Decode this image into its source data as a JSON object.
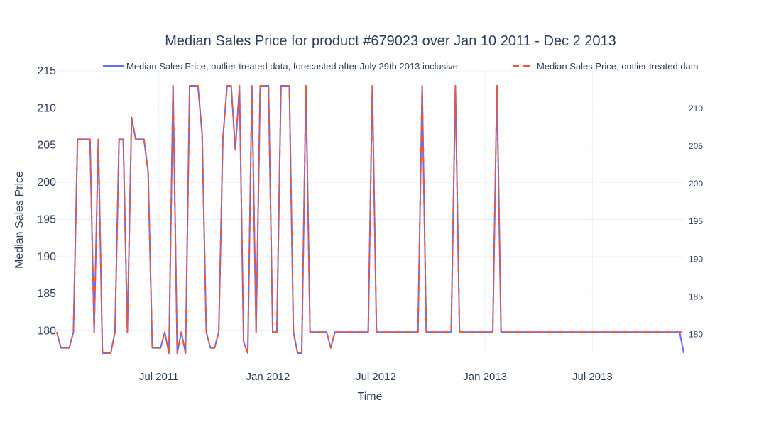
{
  "chart_data": {
    "type": "line",
    "title": "Median Sales Price for product #679023 over Jan 10 2011 - Dec 2 2013",
    "xlabel": "Time",
    "ylabel": "Median Sales Price",
    "xlim": [
      "2011-01-10",
      "2013-12-02"
    ],
    "ylim": [
      177.5,
      213
    ],
    "y_left_range_shown": [
      177,
      215
    ],
    "x_tick_labels": [
      {
        "date": "2011-07-01",
        "label": "Jul 2011"
      },
      {
        "date": "2012-01-01",
        "label": "Jan 2012"
      },
      {
        "date": "2012-07-01",
        "label": "Jul 2012"
      },
      {
        "date": "2013-01-01",
        "label": "Jan 2013"
      },
      {
        "date": "2013-07-01",
        "label": "Jul 2013"
      }
    ],
    "y_left_ticks": [
      "180",
      "185",
      "190",
      "195",
      "200",
      "205",
      "210",
      "215"
    ],
    "y_right_ticks": [
      "180",
      "185",
      "190",
      "195",
      "200",
      "205",
      "210"
    ],
    "grid": true,
    "legend_position": "top",
    "dates": [
      "2011-01-10",
      "2011-01-17",
      "2011-01-24",
      "2011-01-31",
      "2011-02-07",
      "2011-02-14",
      "2011-02-21",
      "2011-02-28",
      "2011-03-07",
      "2011-03-14",
      "2011-03-21",
      "2011-03-28",
      "2011-04-04",
      "2011-04-11",
      "2011-04-18",
      "2011-04-25",
      "2011-05-02",
      "2011-05-09",
      "2011-05-16",
      "2011-05-23",
      "2011-05-30",
      "2011-06-06",
      "2011-06-13",
      "2011-06-20",
      "2011-06-27",
      "2011-07-04",
      "2011-07-11",
      "2011-07-18",
      "2011-07-25",
      "2011-08-01",
      "2011-08-08",
      "2011-08-15",
      "2011-08-22",
      "2011-08-29",
      "2011-09-05",
      "2011-09-12",
      "2011-09-19",
      "2011-09-26",
      "2011-10-03",
      "2011-10-10",
      "2011-10-17",
      "2011-10-24",
      "2011-10-31",
      "2011-11-07",
      "2011-11-14",
      "2011-11-21",
      "2011-11-28",
      "2011-12-05",
      "2011-12-12",
      "2011-12-19",
      "2011-12-26",
      "2012-01-02",
      "2012-01-09",
      "2012-01-16",
      "2012-01-23",
      "2012-01-30",
      "2012-02-06",
      "2012-02-13",
      "2012-02-20",
      "2012-02-27",
      "2012-03-05",
      "2012-03-12",
      "2012-03-19",
      "2012-03-26",
      "2012-04-02",
      "2012-04-09",
      "2012-04-16",
      "2012-04-23",
      "2012-04-30",
      "2012-05-07",
      "2012-05-14",
      "2012-05-21",
      "2012-05-28",
      "2012-06-04",
      "2012-06-11",
      "2012-06-18",
      "2012-06-25",
      "2012-07-02",
      "2012-07-09",
      "2012-07-16",
      "2012-07-23",
      "2012-07-30",
      "2012-08-06",
      "2012-08-13",
      "2012-08-20",
      "2012-08-27",
      "2012-09-03",
      "2012-09-10",
      "2012-09-17",
      "2012-09-24",
      "2012-10-01",
      "2012-10-08",
      "2012-10-15",
      "2012-10-22",
      "2012-10-29",
      "2012-11-05",
      "2012-11-12",
      "2012-11-19",
      "2012-11-26",
      "2012-12-03",
      "2012-12-10",
      "2012-12-17",
      "2012-12-24",
      "2012-12-31",
      "2013-01-07",
      "2013-01-14",
      "2013-01-21",
      "2013-01-28",
      "2013-02-04",
      "2013-02-11",
      "2013-02-18",
      "2013-02-25",
      "2013-03-04",
      "2013-03-11",
      "2013-03-18",
      "2013-03-25",
      "2013-04-01",
      "2013-04-08",
      "2013-04-15",
      "2013-04-22",
      "2013-04-29",
      "2013-05-06",
      "2013-05-13",
      "2013-05-20",
      "2013-05-27",
      "2013-06-03",
      "2013-06-10",
      "2013-06-17",
      "2013-06-24",
      "2013-07-01",
      "2013-07-08",
      "2013-07-15",
      "2013-07-22",
      "2013-07-29",
      "2013-08-05",
      "2013-08-12",
      "2013-08-19",
      "2013-08-26",
      "2013-09-02",
      "2013-09-09",
      "2013-09-16",
      "2013-09-23",
      "2013-09-30",
      "2013-10-07",
      "2013-10-14",
      "2013-10-21",
      "2013-10-28",
      "2013-11-04",
      "2013-11-11",
      "2013-11-18",
      "2013-11-25",
      "2013-12-02"
    ],
    "series": [
      {
        "name": "Median Sales Price, outlier treated data, forecasted after July 29th 2013 inclusive",
        "color": "#636efa",
        "dash": "solid",
        "values": [
          180.3,
          178.2,
          178.2,
          178.2,
          180.3,
          205.9,
          205.9,
          205.9,
          205.9,
          180.3,
          205.9,
          177.5,
          177.5,
          177.5,
          180.3,
          205.9,
          205.9,
          180.3,
          208.8,
          205.9,
          205.9,
          205.9,
          201.6,
          178.2,
          178.2,
          178.2,
          180.3,
          177.5,
          213.0,
          177.5,
          180.3,
          177.5,
          213.0,
          213.0,
          213.0,
          206.6,
          180.3,
          178.2,
          178.2,
          180.3,
          205.9,
          213.0,
          213.0,
          204.5,
          213.0,
          179.0,
          177.5,
          213.0,
          180.3,
          213.0,
          213.0,
          213.0,
          180.3,
          180.3,
          213.0,
          213.0,
          213.0,
          180.3,
          177.5,
          177.5,
          213.0,
          180.3,
          180.3,
          180.3,
          180.3,
          180.3,
          178.2,
          180.3,
          180.3,
          180.3,
          180.3,
          180.3,
          180.3,
          180.3,
          180.3,
          180.3,
          213.0,
          180.3,
          180.3,
          180.3,
          180.3,
          180.3,
          180.3,
          180.3,
          180.3,
          180.3,
          180.3,
          180.3,
          213.0,
          180.3,
          180.3,
          180.3,
          180.3,
          180.3,
          180.3,
          180.3,
          213.0,
          180.3,
          180.3,
          180.3,
          180.3,
          180.3,
          180.3,
          180.3,
          180.3,
          180.3,
          213.0,
          180.3,
          180.3,
          180.3,
          180.3,
          180.3,
          180.3,
          180.3,
          180.3,
          180.3,
          180.3,
          180.3,
          180.3,
          180.3,
          180.3,
          180.3,
          180.3,
          180.3,
          180.3,
          180.3,
          180.3,
          180.3,
          180.3,
          180.3,
          180.3,
          180.3,
          180.3,
          180.3,
          180.3,
          180.3,
          180.3,
          180.3,
          180.3,
          180.3,
          180.3,
          180.3,
          180.3,
          180.3,
          180.3,
          180.3,
          180.3,
          180.3,
          180.3,
          180.3,
          180.3,
          177.5
        ]
      },
      {
        "name": "Median Sales Price, outlier treated data",
        "color": "#ef553b",
        "dash": "dashed",
        "values": [
          180.3,
          178.2,
          178.2,
          178.2,
          180.3,
          205.9,
          205.9,
          205.9,
          205.9,
          180.3,
          205.9,
          177.5,
          177.5,
          177.5,
          180.3,
          205.9,
          205.9,
          180.3,
          208.8,
          205.9,
          205.9,
          205.9,
          201.6,
          178.2,
          178.2,
          178.2,
          180.3,
          177.5,
          213.0,
          177.5,
          180.3,
          177.5,
          213.0,
          213.0,
          213.0,
          206.6,
          180.3,
          178.2,
          178.2,
          180.3,
          205.9,
          213.0,
          213.0,
          204.5,
          213.0,
          179.0,
          177.5,
          213.0,
          180.3,
          213.0,
          213.0,
          213.0,
          180.3,
          180.3,
          213.0,
          213.0,
          213.0,
          180.3,
          177.5,
          177.5,
          213.0,
          180.3,
          180.3,
          180.3,
          180.3,
          180.3,
          178.2,
          180.3,
          180.3,
          180.3,
          180.3,
          180.3,
          180.3,
          180.3,
          180.3,
          180.3,
          213.0,
          180.3,
          180.3,
          180.3,
          180.3,
          180.3,
          180.3,
          180.3,
          180.3,
          180.3,
          180.3,
          180.3,
          213.0,
          180.3,
          180.3,
          180.3,
          180.3,
          180.3,
          180.3,
          180.3,
          213.0,
          180.3,
          180.3,
          180.3,
          180.3,
          180.3,
          180.3,
          180.3,
          180.3,
          180.3,
          213.0,
          180.3,
          180.3,
          180.3,
          180.3,
          180.3,
          180.3,
          180.3,
          180.3,
          180.3,
          180.3,
          180.3,
          180.3,
          180.3,
          180.3,
          180.3,
          180.3,
          180.3,
          180.3,
          180.3,
          180.3,
          180.3,
          180.3,
          180.3,
          180.3,
          180.3,
          180.3,
          180.3,
          180.3,
          180.3,
          180.3,
          180.3,
          180.3,
          180.3,
          180.3,
          180.3,
          180.3,
          180.3,
          180.3,
          180.3,
          180.3,
          180.3,
          180.3,
          180.3,
          180.3,
          180.3
        ]
      }
    ]
  }
}
